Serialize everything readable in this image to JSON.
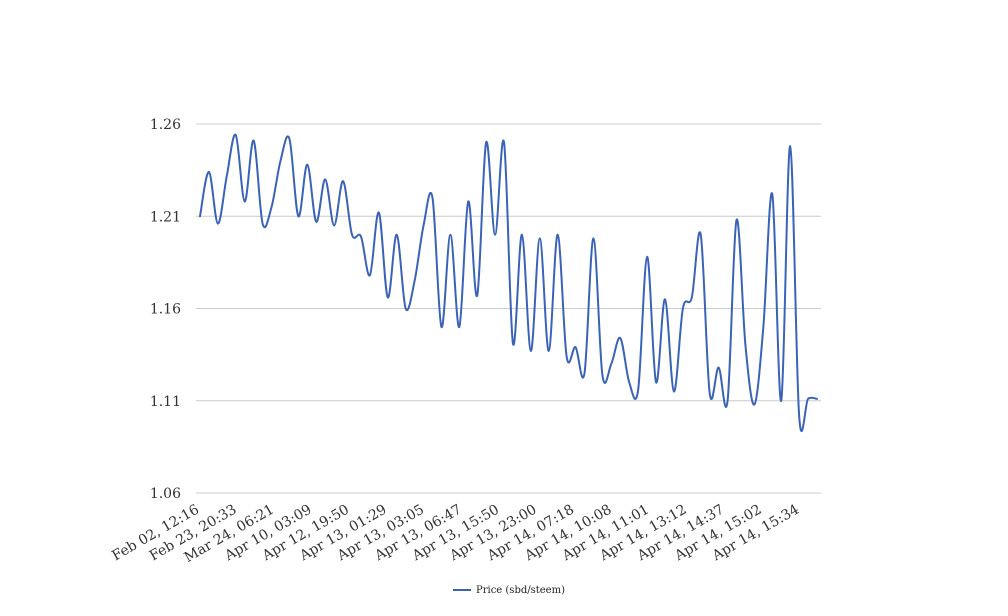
{
  "chart_data": {
    "type": "line",
    "title": "",
    "xlabel": "",
    "ylabel": "",
    "ylim": [
      1.06,
      1.26
    ],
    "yticks": [
      "1.06",
      "1.11",
      "1.16",
      "1.21",
      "1.26"
    ],
    "xticks": [
      "Feb 02, 12:16",
      "Feb 23, 20:33",
      "Mar 24, 06:21",
      "Apr 10, 03:09",
      "Apr 12, 19:50",
      "Apr 13, 01:29",
      "Apr 13, 03:05",
      "Apr 13, 06:47",
      "Apr 13, 15:50",
      "Apr 13, 23:00",
      "Apr 14, 07:18",
      "Apr 14, 10:08",
      "Apr 14, 11:01",
      "Apr 14, 13:12",
      "Apr 14, 14:37",
      "Apr 14, 15:02",
      "Apr 14, 15:34"
    ],
    "grid": true,
    "legend": "bottom",
    "series": [
      {
        "name": "Price (sbd/steem)",
        "color": "#3a63b8",
        "values": [
          1.21,
          1.234,
          1.206,
          1.232,
          1.254,
          1.218,
          1.251,
          1.206,
          1.215,
          1.24,
          1.252,
          1.21,
          1.238,
          1.207,
          1.23,
          1.205,
          1.229,
          1.2,
          1.199,
          1.178,
          1.212,
          1.166,
          1.2,
          1.16,
          1.175,
          1.205,
          1.22,
          1.15,
          1.2,
          1.15,
          1.218,
          1.167,
          1.25,
          1.2,
          1.25,
          1.141,
          1.2,
          1.137,
          1.198,
          1.137,
          1.2,
          1.134,
          1.139,
          1.125,
          1.198,
          1.124,
          1.13,
          1.144,
          1.12,
          1.116,
          1.188,
          1.12,
          1.165,
          1.115,
          1.16,
          1.166,
          1.2,
          1.114,
          1.128,
          1.11,
          1.208,
          1.14,
          1.108,
          1.15,
          1.222,
          1.11,
          1.248,
          1.102,
          1.111,
          1.111
        ]
      }
    ]
  }
}
